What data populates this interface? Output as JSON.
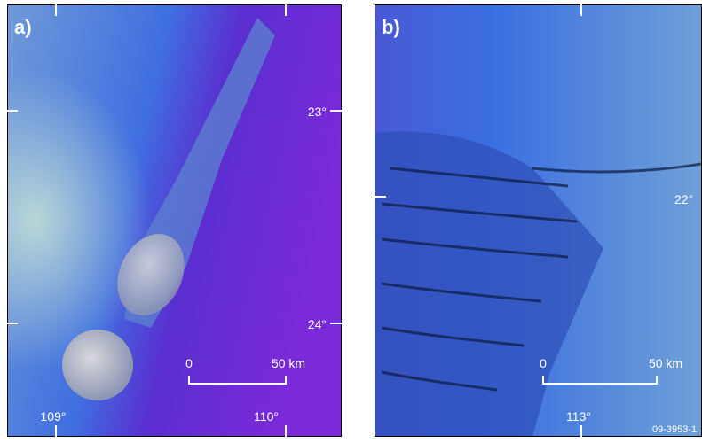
{
  "panels": [
    {
      "label": "a)",
      "lat_labels": [
        "23°",
        "24°"
      ],
      "lon_labels": [
        "109°",
        "110°"
      ],
      "scale": {
        "start": "0",
        "end": "50 km"
      }
    },
    {
      "label": "b)",
      "lat_labels": [
        "22°"
      ],
      "lon_labels": [
        "113°"
      ],
      "scale": {
        "start": "0",
        "end": "50 km"
      }
    }
  ],
  "figure_id": "09-3953-1"
}
